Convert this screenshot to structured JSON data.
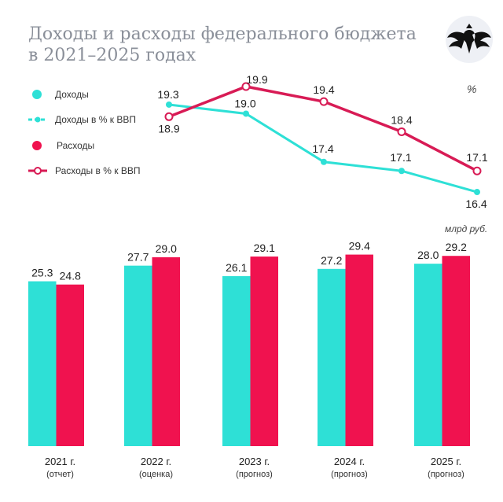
{
  "header": {
    "title_line1": "Доходы и расходы федерального бюджета",
    "title_line2": "в 2021–2025 годах"
  },
  "colors": {
    "income": "#2ee0d6",
    "expense": "#f0124f",
    "title": "#8a8f99"
  },
  "chart_data": [
    {
      "type": "line",
      "unit_label": "%",
      "categories": [
        "2021",
        "2022",
        "2023",
        "2024",
        "2025"
      ],
      "series": [
        {
          "name": "Доходы в % к ВВП",
          "values": [
            19.3,
            19.0,
            17.4,
            17.1,
            16.4
          ],
          "labels": [
            "19.3",
            "19.0",
            "17.4",
            "17.1",
            "16.4"
          ]
        },
        {
          "name": "Расходы в % к ВВП",
          "values": [
            18.9,
            19.9,
            19.4,
            18.4,
            17.1
          ],
          "labels": [
            "18.9",
            "19.9",
            "19.4",
            "18.4",
            "17.1"
          ]
        }
      ]
    },
    {
      "type": "bar",
      "unit_label": "млрд руб.",
      "categories": [
        {
          "year": "2021 г.",
          "note": "(отчет)"
        },
        {
          "year": "2022 г.",
          "note": "(оценка)"
        },
        {
          "year": "2023 г.",
          "note": "(прогноз)"
        },
        {
          "year": "2024 г.",
          "note": "(прогноз)"
        },
        {
          "year": "2025 г.",
          "note": "(прогноз)"
        }
      ],
      "series": [
        {
          "name": "Доходы",
          "values": [
            25.3,
            27.7,
            26.1,
            27.2,
            28.0
          ],
          "labels": [
            "25.3",
            "27.7",
            "26.1",
            "27.2",
            "28.0"
          ]
        },
        {
          "name": "Расходы",
          "values": [
            24.8,
            29.0,
            29.1,
            29.4,
            29.2
          ],
          "labels": [
            "24.8",
            "29.0",
            "29.1",
            "29.4",
            "29.2"
          ]
        }
      ]
    }
  ],
  "legend": [
    "Доходы",
    "Доходы в % к ВВП",
    "Расходы",
    "Расходы в % к ВВП"
  ]
}
